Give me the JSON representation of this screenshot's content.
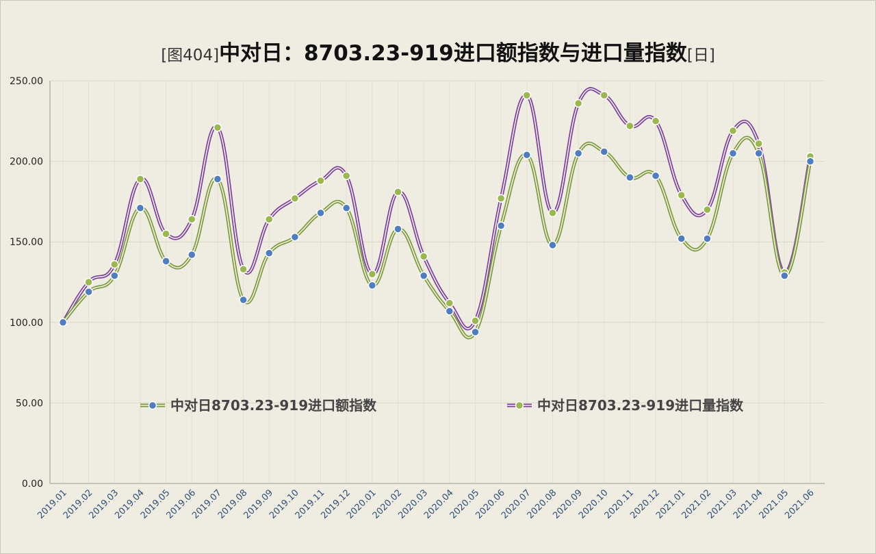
{
  "title": {
    "prefix": "[图404]",
    "main": "中对日：8703.23-919进口额指数与进口量指数",
    "suffix": "[日]"
  },
  "chart_data": {
    "type": "line",
    "title": "[图404]中对日：8703.23-919进口额指数与进口量指数[日]",
    "xlabel": "",
    "ylabel": "",
    "ylim": [
      0,
      250
    ],
    "yticks": [
      "0.00",
      "50.00",
      "100.00",
      "150.00",
      "200.00",
      "250.00"
    ],
    "grid": true,
    "legend_placement": "inside-bottom",
    "categories": [
      "2019.01",
      "2019.02",
      "2019.03",
      "2019.04",
      "2019.05",
      "2019.06",
      "2019.07",
      "2019.08",
      "2019.09",
      "2019.10",
      "2019.11",
      "2019.12",
      "2020.01",
      "2020.02",
      "2020.03",
      "2020.04",
      "2020.05",
      "2020.06",
      "2020.07",
      "2020.08",
      "2020.09",
      "2020.10",
      "2020.11",
      "2020.12",
      "2021.01",
      "2021.02",
      "2021.03",
      "2021.04",
      "2021.05",
      "2021.06"
    ],
    "series": [
      {
        "name": "中对日8703.23-919进口额指数",
        "line_color": "#7a9a3c",
        "marker_color": "#4f7dc0",
        "values": [
          100,
          119,
          129,
          171,
          138,
          142,
          189,
          114,
          143,
          153,
          168,
          171,
          123,
          158,
          129,
          107,
          94,
          160,
          204,
          148,
          205,
          206,
          190,
          191,
          152,
          152,
          205,
          205,
          129,
          200
        ]
      },
      {
        "name": "中对日8703.23-919进口量指数",
        "line_color": "#7b3fa0",
        "marker_color": "#9ab84e",
        "values": [
          100,
          125,
          136,
          189,
          155,
          164,
          221,
          133,
          164,
          177,
          188,
          191,
          130,
          181,
          141,
          112,
          101,
          177,
          241,
          168,
          236,
          241,
          222,
          225,
          179,
          170,
          219,
          211,
          131,
          203
        ]
      }
    ]
  }
}
